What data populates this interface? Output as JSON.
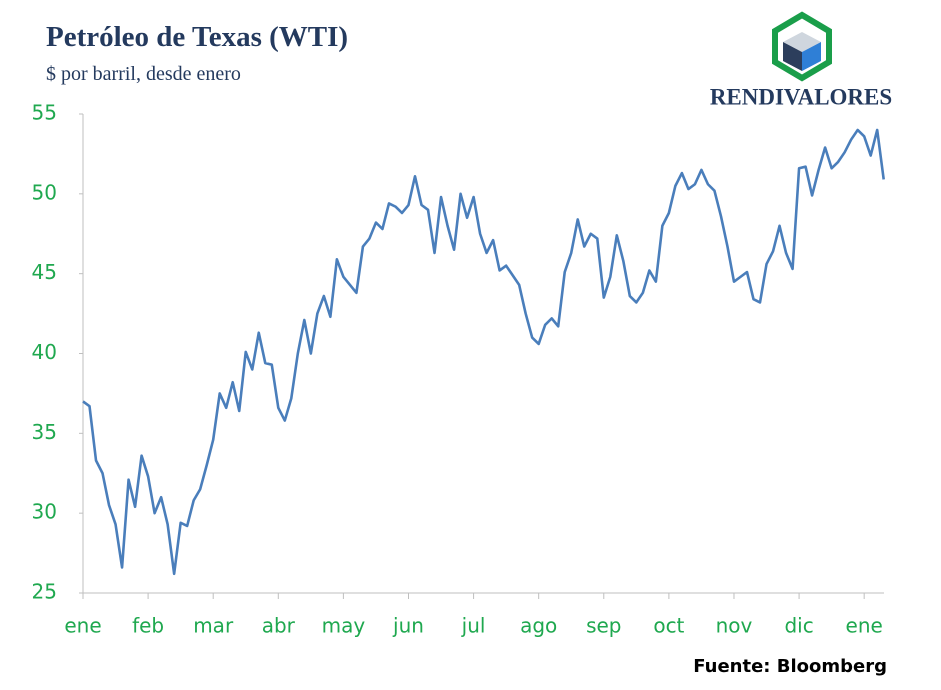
{
  "chart_data": {
    "type": "line",
    "title": "Petróleo de Texas (WTI)",
    "subtitle": "$ por barril, desde enero",
    "logo": "RENDIVALORES",
    "source": "Fuente: Bloomberg",
    "categories": [
      "ene",
      null,
      null,
      null,
      null,
      null,
      null,
      null,
      null,
      null,
      "feb",
      null,
      null,
      null,
      null,
      null,
      null,
      null,
      null,
      null,
      "mar",
      null,
      null,
      null,
      null,
      null,
      null,
      null,
      null,
      null,
      "abr",
      null,
      null,
      null,
      null,
      null,
      null,
      null,
      null,
      null,
      "may",
      null,
      null,
      null,
      null,
      null,
      null,
      null,
      null,
      null,
      "jun",
      null,
      null,
      null,
      null,
      null,
      null,
      null,
      null,
      null,
      "jul",
      null,
      null,
      null,
      null,
      null,
      null,
      null,
      null,
      null,
      "ago",
      null,
      null,
      null,
      null,
      null,
      null,
      null,
      null,
      null,
      "sep",
      null,
      null,
      null,
      null,
      null,
      null,
      null,
      null,
      null,
      "oct",
      null,
      null,
      null,
      null,
      null,
      null,
      null,
      null,
      null,
      "nov",
      null,
      null,
      null,
      null,
      null,
      null,
      null,
      null,
      null,
      "dic",
      null,
      null,
      null,
      null,
      null,
      null,
      null,
      null,
      null,
      "ene",
      null,
      null,
      null
    ],
    "values": [
      37.0,
      36.7,
      33.3,
      32.5,
      30.5,
      29.3,
      26.6,
      32.1,
      30.4,
      33.6,
      32.3,
      30.0,
      31.0,
      29.3,
      26.2,
      29.4,
      29.2,
      30.8,
      31.5,
      33.0,
      34.6,
      37.5,
      36.6,
      38.2,
      36.4,
      40.1,
      39.0,
      41.3,
      39.4,
      39.3,
      36.6,
      35.8,
      37.2,
      40.0,
      42.1,
      40.0,
      42.5,
      43.6,
      42.3,
      45.9,
      44.8,
      44.3,
      43.8,
      46.7,
      47.2,
      48.2,
      47.8,
      49.4,
      49.2,
      48.8,
      49.3,
      51.1,
      49.3,
      49.0,
      46.3,
      49.8,
      48.0,
      46.5,
      50.0,
      48.5,
      49.8,
      47.5,
      46.3,
      47.1,
      45.2,
      45.5,
      44.9,
      44.3,
      42.5,
      41.0,
      40.6,
      41.8,
      42.2,
      41.7,
      45.1,
      46.3,
      48.4,
      46.7,
      47.5,
      47.2,
      43.5,
      44.8,
      47.4,
      45.8,
      43.6,
      43.2,
      43.8,
      45.2,
      44.5,
      48.0,
      48.8,
      50.5,
      51.3,
      50.3,
      50.6,
      51.5,
      50.6,
      50.2,
      48.6,
      46.7,
      44.5,
      44.8,
      45.1,
      43.4,
      43.2,
      45.6,
      46.4,
      48.0,
      46.3,
      45.3,
      51.6,
      51.7,
      49.9,
      51.5,
      52.9,
      51.6,
      52.0,
      52.6,
      53.4,
      54.0,
      53.6,
      52.4,
      54.0,
      50.9
    ],
    "color": "#4a7ebb",
    "ylim": [
      25,
      55
    ],
    "yticks": [
      25,
      30,
      35,
      40,
      45,
      50,
      55
    ],
    "grid": false
  }
}
